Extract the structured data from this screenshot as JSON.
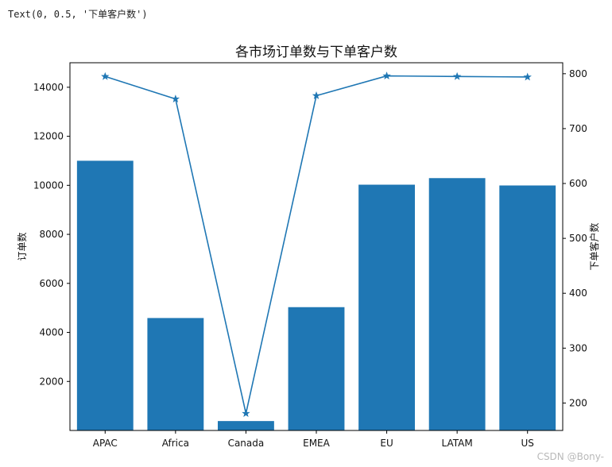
{
  "console_output": "Text(0, 0.5, '下单客户数')",
  "watermark": "CSDN @Bony-",
  "chart_data": {
    "type": "bar",
    "title": "各市场订单数与下单客户数",
    "categories": [
      "APAC",
      "Africa",
      "Canada",
      "EMEA",
      "EU",
      "LATAM",
      "US"
    ],
    "series": [
      {
        "name": "订单数",
        "type": "bar",
        "axis": "left",
        "values": [
          11002,
          4587,
          384,
          5030,
          10026,
          10294,
          9994
        ]
      },
      {
        "name": "下单客户数",
        "type": "line",
        "marker": "star",
        "axis": "right",
        "values": [
          795,
          754,
          181,
          760,
          796,
          795,
          794
        ]
      }
    ],
    "ylabel": "订单数",
    "ylabel_right": "下单客户数",
    "ylim": [
      0,
      15000
    ],
    "ylim_right": [
      150,
      820
    ],
    "yticks": [
      2000,
      4000,
      6000,
      8000,
      10000,
      12000,
      14000
    ],
    "yticks_right": [
      200,
      300,
      400,
      500,
      600,
      700,
      800
    ],
    "colors": {
      "bar": "#1f77b4",
      "line": "#1f77b4"
    },
    "grid": false
  }
}
